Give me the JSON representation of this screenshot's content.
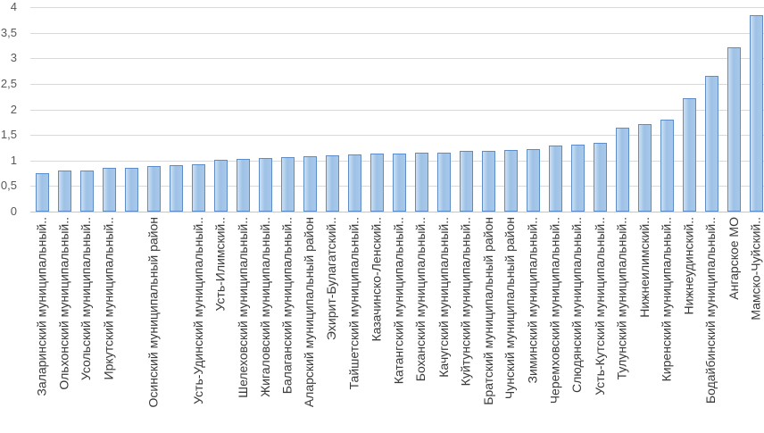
{
  "chart_data": {
    "type": "bar",
    "title": "",
    "xlabel": "",
    "ylabel": "",
    "ylim": [
      0,
      4
    ],
    "ytick_step": 0.5,
    "ytick_labels": [
      "0",
      "0,5",
      "1",
      "1,5",
      "2",
      "2,5",
      "3",
      "3,5",
      "4"
    ],
    "grid": true,
    "legend_position": "none",
    "categories": [
      "Заларинский муниципальный..",
      "Ольхонский муниципальный..",
      "Усольский муниципальный..",
      "Иркутский муниципальный..",
      "",
      "Осинский муниципальный район",
      "",
      "Усть-Удинский муниципальный..",
      "Усть-Илимский..",
      "Шелеховский муниципальный..",
      "Жигаловский муниципальный..",
      "Балаганский муниципальный..",
      "Аларский муниципальный район",
      "Эхирит-Булагатский..",
      "Тайшетский муниципальный..",
      "Казачинско-Ленский..",
      "Катангский муниципальный..",
      "Боханский муниципальный..",
      "Качугский муниципальный..",
      "Куйтунский муниципальный..",
      "Братский муниципальный район",
      "Чунский муниципальный район",
      "Зиминский муниципальный..",
      "Черемховский муниципальный..",
      "Слюдянский муниципальный..",
      "Усть-Кутский муниципальный..",
      "Тулунский муниципальный..",
      "Нижнеилимский..",
      "Киренский муниципальный..",
      "Нижнеудинский..",
      "Бодайбинский муниципальный..",
      "Ангарское МО",
      "Мамско-Чуйский.."
    ],
    "values": [
      0.75,
      0.8,
      0.8,
      0.85,
      0.85,
      0.89,
      0.9,
      0.93,
      1.01,
      1.03,
      1.05,
      1.07,
      1.09,
      1.1,
      1.12,
      1.13,
      1.14,
      1.15,
      1.16,
      1.18,
      1.19,
      1.21,
      1.23,
      1.29,
      1.31,
      1.35,
      1.65,
      1.72,
      1.8,
      2.21,
      2.66,
      3.21,
      3.85
    ],
    "colors": {
      "bar_fill": "#a3c4e8",
      "bar_fill_light": "#cde0f3",
      "bar_border": "#5e8cc7",
      "gridline": "#d9d9d9",
      "axis_line": "#c6c6c6",
      "tick_label": "#595959",
      "category_label": "#3a3a3a",
      "background": "#ffffff"
    }
  }
}
